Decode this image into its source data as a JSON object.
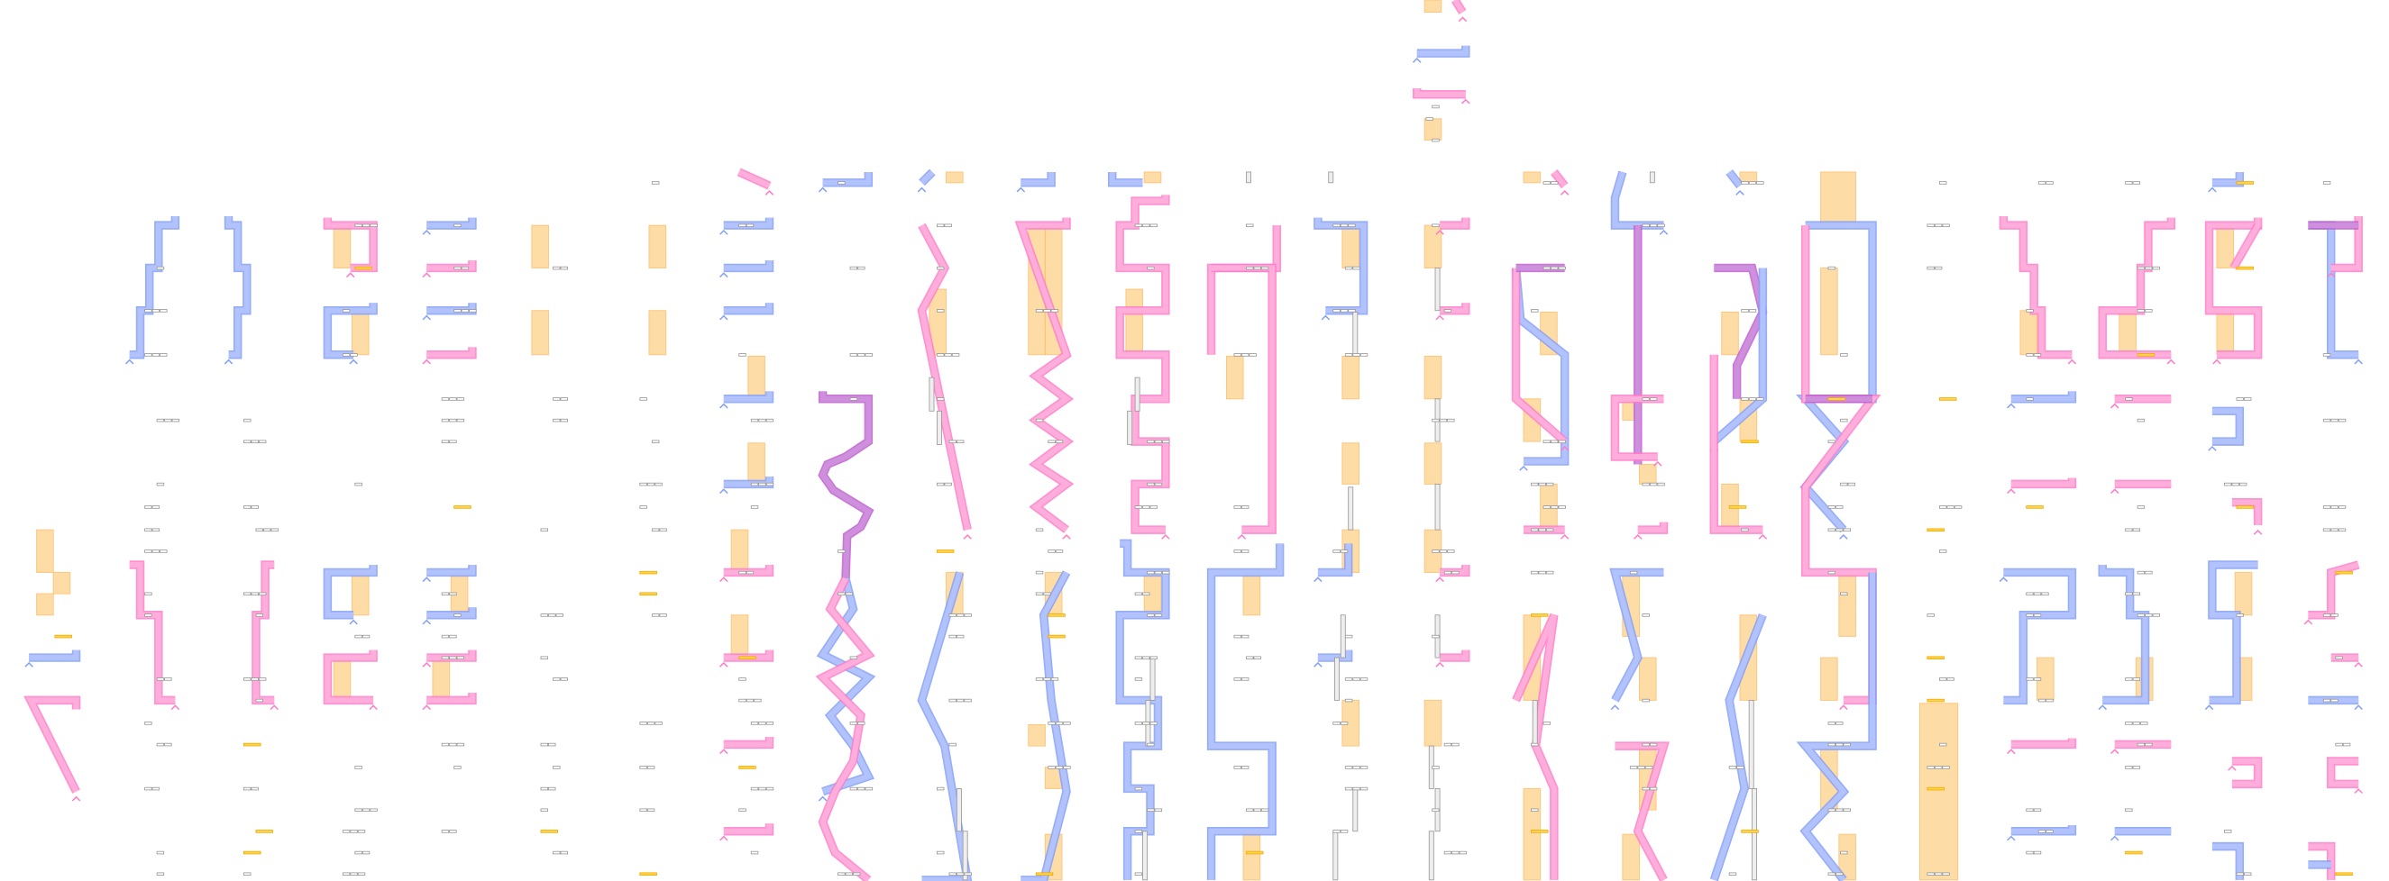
{
  "colors": {
    "blue_fill": "#b3c3fd",
    "blue_edge": "#85a0f7",
    "pink_fill": "#ffb0dc",
    "pink_edge": "#ff7cc9",
    "purple_fill": "#cf90dc",
    "purple_edge": "#c060d0",
    "orange_fill": "#fed697",
    "orange_edge": "#fdbe6a",
    "gold_dash": "#f5a800",
    "gray_dash": "#9a9a9a",
    "background": "#ffffff"
  }
}
